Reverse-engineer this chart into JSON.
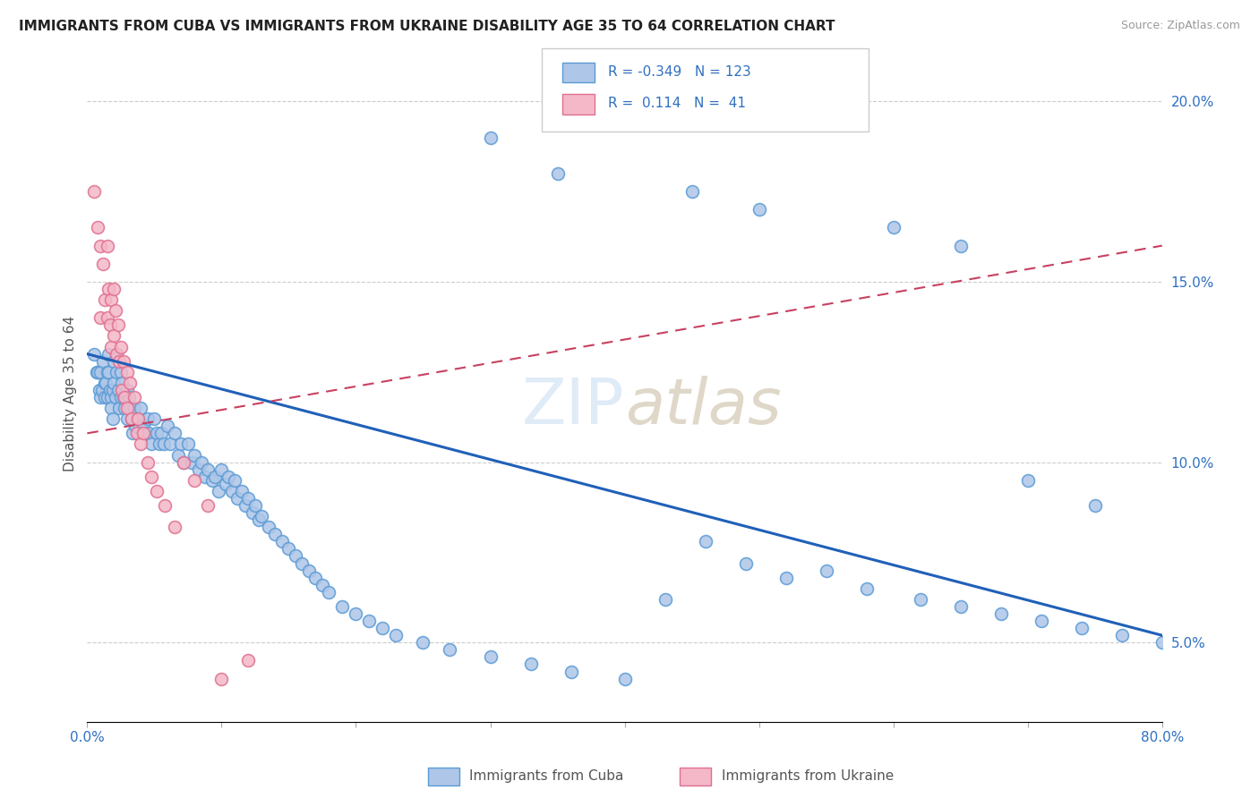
{
  "title": "IMMIGRANTS FROM CUBA VS IMMIGRANTS FROM UKRAINE DISABILITY AGE 35 TO 64 CORRELATION CHART",
  "source": "Source: ZipAtlas.com",
  "ylabel": "Disability Age 35 to 64",
  "x_min": 0.0,
  "x_max": 0.8,
  "y_min": 0.028,
  "y_max": 0.21,
  "x_ticks": [
    0.0,
    0.1,
    0.2,
    0.3,
    0.4,
    0.5,
    0.6,
    0.7,
    0.8
  ],
  "x_tick_labels_show": [
    "0.0%",
    "",
    "",
    "",
    "",
    "",
    "",
    "",
    "80.0%"
  ],
  "y_ticks": [
    0.05,
    0.1,
    0.15,
    0.2
  ],
  "y_tick_labels": [
    "5.0%",
    "10.0%",
    "15.0%",
    "20.0%"
  ],
  "cuba_color": "#aec6e8",
  "cuba_edge_color": "#5b9bd5",
  "ukraine_color": "#f4b8c8",
  "ukraine_edge_color": "#e07090",
  "cuba_R": -0.349,
  "cuba_N": 123,
  "ukraine_R": 0.114,
  "ukraine_N": 41,
  "trend_cuba_color": "#2060b8",
  "trend_ukraine_color": "#c84060",
  "legend_label_cuba": "Immigrants from Cuba",
  "legend_label_ukraine": "Immigrants from Ukraine",
  "cuba_x": [
    0.005,
    0.007,
    0.008,
    0.009,
    0.01,
    0.01,
    0.011,
    0.012,
    0.013,
    0.013,
    0.014,
    0.015,
    0.015,
    0.016,
    0.016,
    0.017,
    0.018,
    0.018,
    0.019,
    0.019,
    0.02,
    0.02,
    0.021,
    0.022,
    0.022,
    0.023,
    0.024,
    0.025,
    0.025,
    0.026,
    0.027,
    0.028,
    0.03,
    0.03,
    0.031,
    0.032,
    0.033,
    0.034,
    0.035,
    0.036,
    0.038,
    0.04,
    0.042,
    0.044,
    0.045,
    0.046,
    0.048,
    0.05,
    0.052,
    0.054,
    0.055,
    0.057,
    0.06,
    0.062,
    0.065,
    0.068,
    0.07,
    0.072,
    0.075,
    0.078,
    0.08,
    0.083,
    0.085,
    0.088,
    0.09,
    0.093,
    0.095,
    0.098,
    0.1,
    0.103,
    0.105,
    0.108,
    0.11,
    0.112,
    0.115,
    0.118,
    0.12,
    0.123,
    0.125,
    0.128,
    0.13,
    0.135,
    0.14,
    0.145,
    0.15,
    0.155,
    0.16,
    0.165,
    0.17,
    0.175,
    0.18,
    0.19,
    0.2,
    0.21,
    0.22,
    0.23,
    0.25,
    0.27,
    0.3,
    0.33,
    0.36,
    0.4,
    0.43,
    0.46,
    0.49,
    0.52,
    0.55,
    0.58,
    0.62,
    0.65,
    0.68,
    0.71,
    0.74,
    0.77,
    0.8,
    0.3,
    0.35,
    0.45,
    0.5,
    0.6,
    0.65,
    0.7,
    0.75
  ],
  "cuba_y": [
    0.13,
    0.125,
    0.125,
    0.12,
    0.125,
    0.118,
    0.12,
    0.128,
    0.122,
    0.118,
    0.122,
    0.125,
    0.118,
    0.13,
    0.125,
    0.12,
    0.118,
    0.115,
    0.12,
    0.112,
    0.128,
    0.122,
    0.118,
    0.13,
    0.125,
    0.12,
    0.115,
    0.125,
    0.118,
    0.122,
    0.118,
    0.115,
    0.12,
    0.112,
    0.118,
    0.115,
    0.112,
    0.108,
    0.115,
    0.11,
    0.112,
    0.115,
    0.11,
    0.108,
    0.112,
    0.108,
    0.105,
    0.112,
    0.108,
    0.105,
    0.108,
    0.105,
    0.11,
    0.105,
    0.108,
    0.102,
    0.105,
    0.1,
    0.105,
    0.1,
    0.102,
    0.098,
    0.1,
    0.096,
    0.098,
    0.095,
    0.096,
    0.092,
    0.098,
    0.094,
    0.096,
    0.092,
    0.095,
    0.09,
    0.092,
    0.088,
    0.09,
    0.086,
    0.088,
    0.084,
    0.085,
    0.082,
    0.08,
    0.078,
    0.076,
    0.074,
    0.072,
    0.07,
    0.068,
    0.066,
    0.064,
    0.06,
    0.058,
    0.056,
    0.054,
    0.052,
    0.05,
    0.048,
    0.046,
    0.044,
    0.042,
    0.04,
    0.062,
    0.078,
    0.072,
    0.068,
    0.07,
    0.065,
    0.062,
    0.06,
    0.058,
    0.056,
    0.054,
    0.052,
    0.05,
    0.19,
    0.18,
    0.175,
    0.17,
    0.165,
    0.16,
    0.095,
    0.088
  ],
  "ukraine_x": [
    0.005,
    0.008,
    0.01,
    0.01,
    0.012,
    0.013,
    0.015,
    0.015,
    0.016,
    0.017,
    0.018,
    0.018,
    0.02,
    0.02,
    0.021,
    0.022,
    0.023,
    0.024,
    0.025,
    0.026,
    0.027,
    0.028,
    0.03,
    0.03,
    0.032,
    0.033,
    0.035,
    0.037,
    0.038,
    0.04,
    0.042,
    0.045,
    0.048,
    0.052,
    0.058,
    0.065,
    0.072,
    0.08,
    0.09,
    0.1,
    0.12
  ],
  "ukraine_y": [
    0.175,
    0.165,
    0.16,
    0.14,
    0.155,
    0.145,
    0.16,
    0.14,
    0.148,
    0.138,
    0.145,
    0.132,
    0.148,
    0.135,
    0.142,
    0.13,
    0.138,
    0.128,
    0.132,
    0.12,
    0.128,
    0.118,
    0.125,
    0.115,
    0.122,
    0.112,
    0.118,
    0.108,
    0.112,
    0.105,
    0.108,
    0.1,
    0.096,
    0.092,
    0.088,
    0.082,
    0.1,
    0.095,
    0.088,
    0.04,
    0.045
  ],
  "trend_cuba_start_y": 0.13,
  "trend_cuba_end_y": 0.052,
  "trend_ukraine_start_y": 0.108,
  "trend_ukraine_end_y": 0.16
}
